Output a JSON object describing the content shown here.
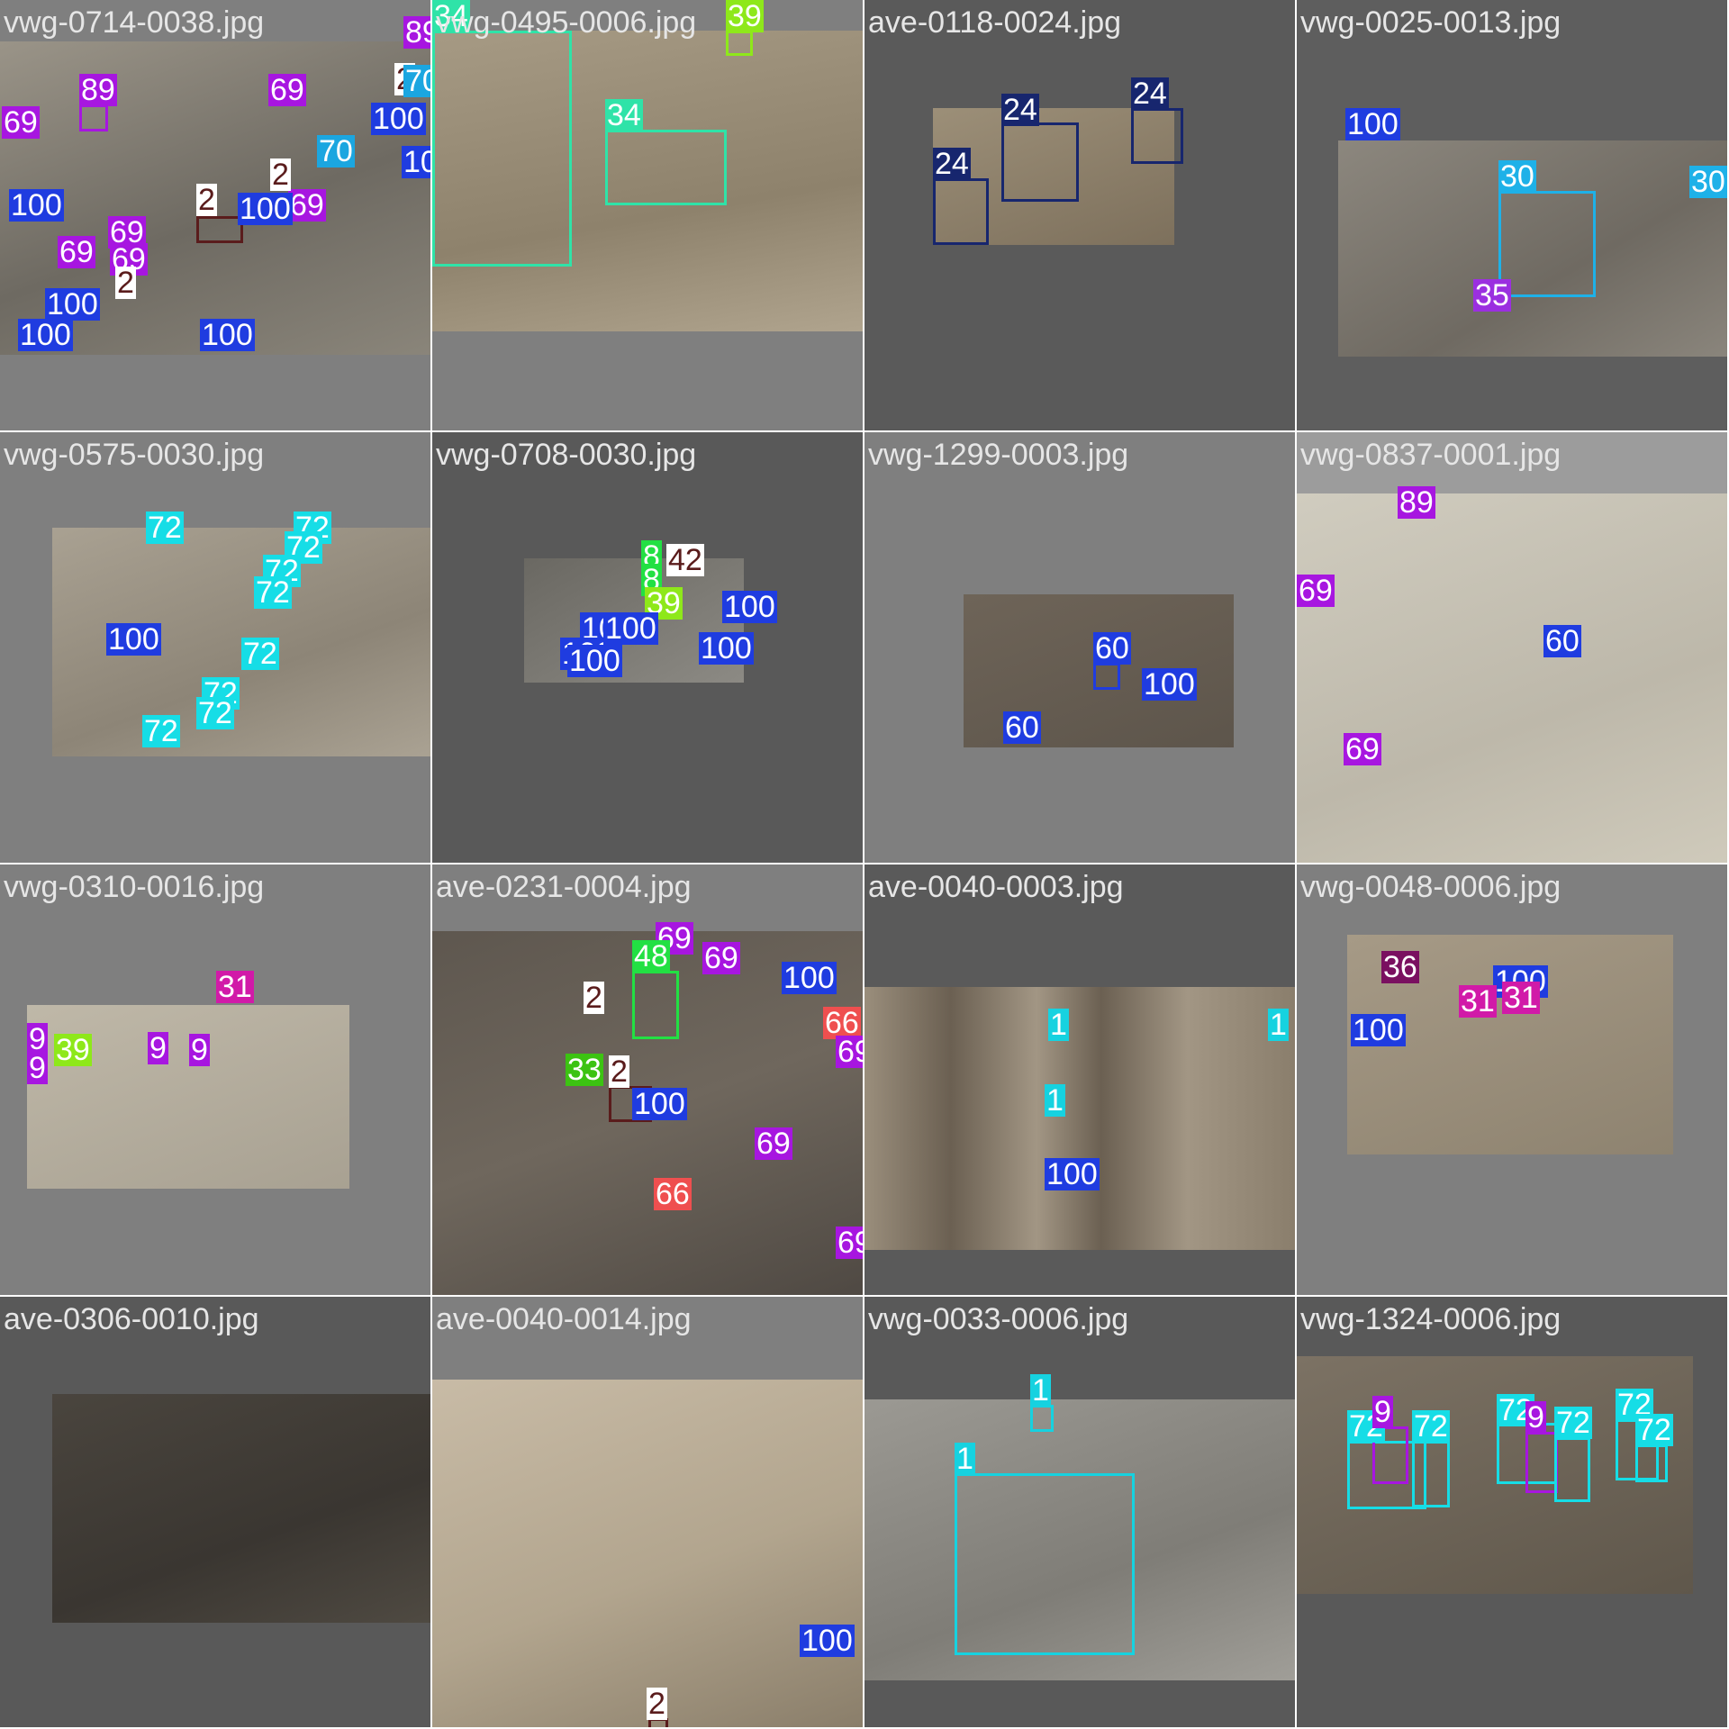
{
  "palette": {
    "c100": "#1f3ce0",
    "c69": "#a716e0",
    "c89": "#a716e0",
    "c2": "#5a1c1c",
    "c70": "#1ba6e0",
    "c34": "#2fe3a8",
    "c39": "#8ee81a",
    "c24": "#17266e",
    "c30": "#1eb1e8",
    "c35": "#9b2fe0",
    "c72": "#16dde6",
    "c8": "#22e043",
    "c42": "#5a1c1c",
    "c60": "#1f3ce0",
    "c31": "#d11aa8",
    "c9": "#a716e0",
    "c48": "#22e043",
    "c33": "#3cc312",
    "c66": "#ef4f4f",
    "c1": "#16d2e0",
    "c36": "#7a1060"
  },
  "tiles": [
    {
      "filename": "vwg-0714-0038.jpg",
      "labels": [
        "89",
        "69",
        "89",
        "69",
        "2",
        "70",
        "100",
        "70",
        "100",
        "69",
        "2",
        "2",
        "100",
        "100",
        "69",
        "69",
        "69",
        "2",
        "100",
        "100",
        "100"
      ]
    },
    {
      "filename": "vwg-0495-0006.jpg",
      "labels": [
        "34",
        "39",
        "34"
      ]
    },
    {
      "filename": "ave-0118-0024.jpg",
      "labels": [
        "24",
        "24",
        "24"
      ]
    },
    {
      "filename": "vwg-0025-0013.jpg",
      "labels": [
        "100",
        "30",
        "30",
        "35"
      ]
    },
    {
      "filename": "vwg-0575-0030.jpg",
      "labels": [
        "72",
        "72",
        "72",
        "72",
        "72",
        "100",
        "72",
        "72",
        "72",
        "72"
      ]
    },
    {
      "filename": "vwg-0708-0030.jpg",
      "labels": [
        "8",
        "42",
        "8",
        "39",
        "100",
        "100",
        "100",
        "100",
        "100",
        "100"
      ]
    },
    {
      "filename": "vwg-1299-0003.jpg",
      "labels": [
        "60",
        "100",
        "60"
      ]
    },
    {
      "filename": "vwg-0837-0001.jpg",
      "labels": [
        "89",
        "69",
        "60",
        "69"
      ]
    },
    {
      "filename": "vwg-0310-0016.jpg",
      "labels": [
        "31",
        "9",
        "39",
        "9",
        "9",
        "9"
      ]
    },
    {
      "filename": "ave-0231-0004.jpg",
      "labels": [
        "69",
        "48",
        "69",
        "100",
        "2",
        "66",
        "69",
        "33",
        "2",
        "100",
        "69",
        "66",
        "69"
      ]
    },
    {
      "filename": "ave-0040-0003.jpg",
      "labels": [
        "1",
        "1",
        "1",
        "100"
      ]
    },
    {
      "filename": "vwg-0048-0006.jpg",
      "labels": [
        "36",
        "100",
        "100",
        "31",
        "31"
      ]
    },
    {
      "filename": "ave-0306-0010.jpg",
      "labels": []
    },
    {
      "filename": "ave-0040-0014.jpg",
      "labels": [
        "100",
        "2"
      ]
    },
    {
      "filename": "vwg-0033-0006.jpg",
      "labels": [
        "1",
        "1"
      ]
    },
    {
      "filename": "vwg-1324-0006.jpg",
      "labels": [
        "72",
        "9",
        "72",
        "72",
        "9",
        "72",
        "72",
        "72"
      ]
    }
  ]
}
